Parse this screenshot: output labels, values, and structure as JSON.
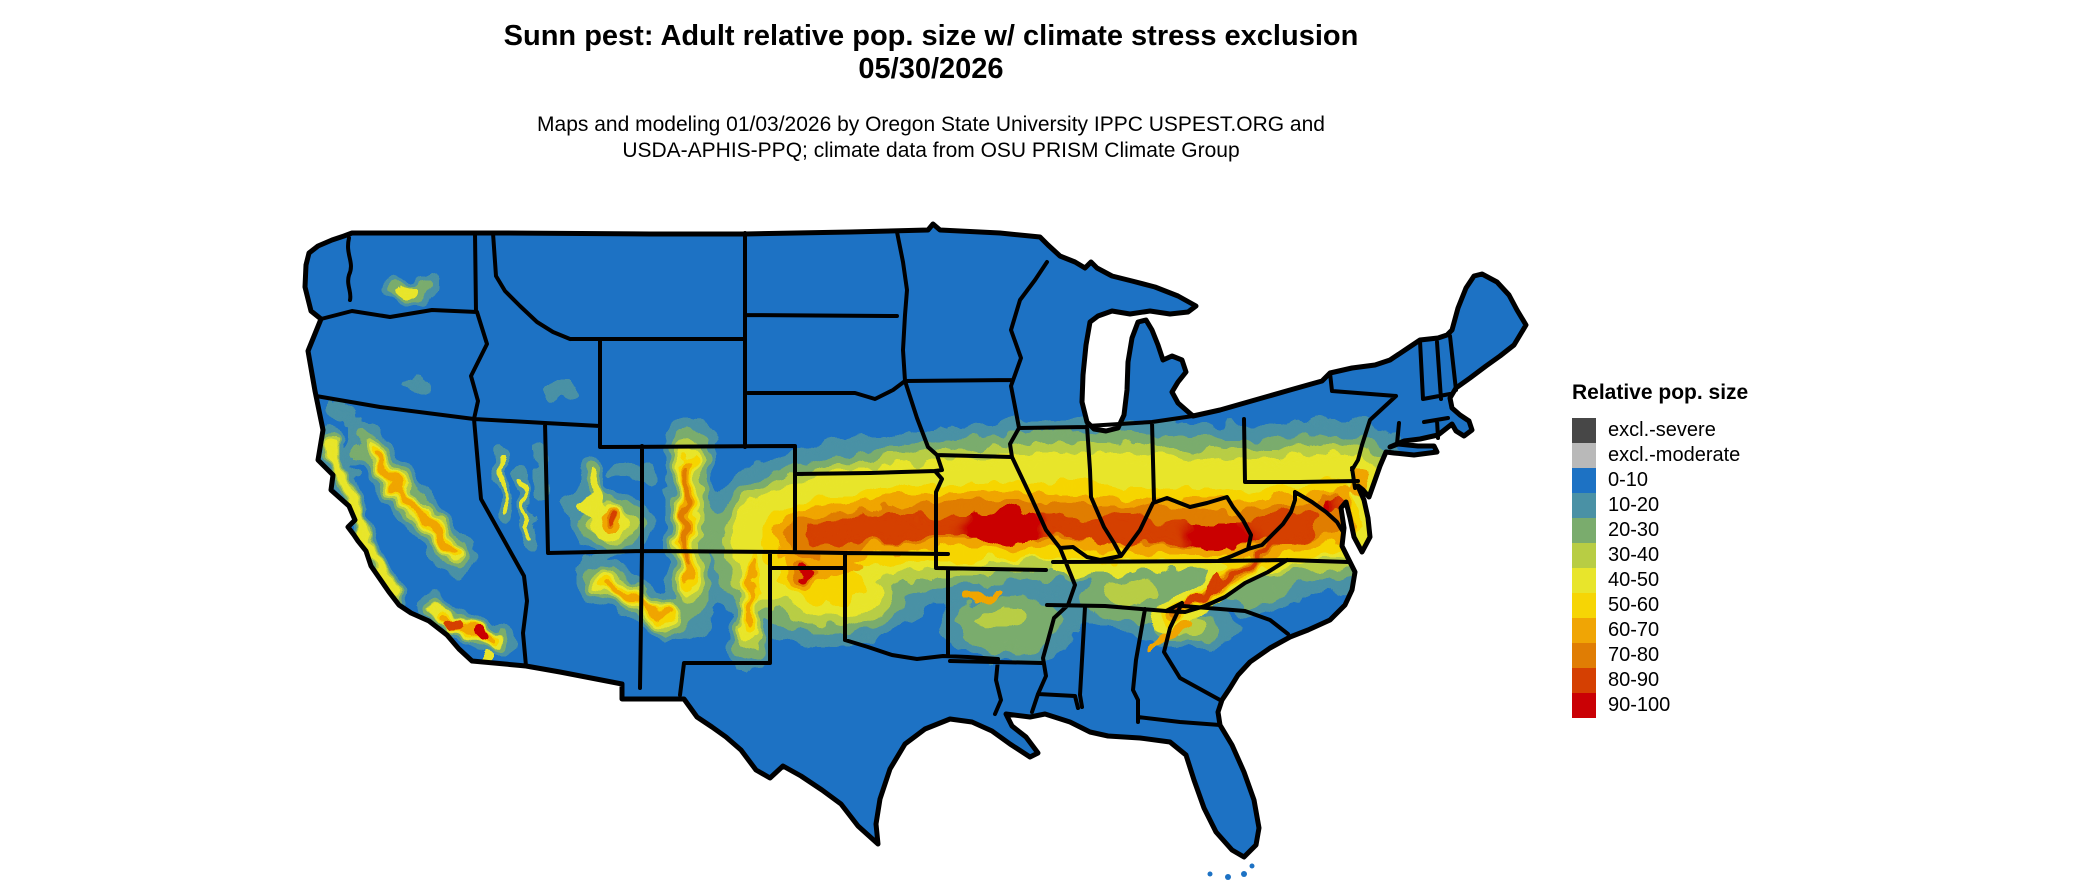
{
  "figure": {
    "title_line1": "Sunn pest: Adult relative pop. size w/ climate stress exclusion",
    "title_line2": "05/30/2026",
    "subtitle_line1": "Maps and modeling 01/03/2026 by Oregon State University IPPC USPEST.ORG and",
    "subtitle_line2": "USDA-APHIS-PPQ; climate data from OSU PRISM Climate Group"
  },
  "legend": {
    "title": "Relative pop. size",
    "items": [
      {
        "key": "excl_severe",
        "label": "excl.-severe",
        "color": "#474747"
      },
      {
        "key": "excl_moderate",
        "label": "excl.-moderate",
        "color": "#b9b9b9"
      },
      {
        "key": "p0_10",
        "label": "0-10",
        "color": "#1d72c4"
      },
      {
        "key": "p10_20",
        "label": "10-20",
        "color": "#4a91a5"
      },
      {
        "key": "p20_30",
        "label": "20-30",
        "color": "#7aac6d"
      },
      {
        "key": "p30_40",
        "label": "30-40",
        "color": "#b8cd44"
      },
      {
        "key": "p40_50",
        "label": "40-50",
        "color": "#e8e52b"
      },
      {
        "key": "p50_60",
        "label": "50-60",
        "color": "#f6d505"
      },
      {
        "key": "p60_70",
        "label": "60-70",
        "color": "#f0a505"
      },
      {
        "key": "p70_80",
        "label": "70-80",
        "color": "#e07d04"
      },
      {
        "key": "p80_90",
        "label": "80-90",
        "color": "#d54002"
      },
      {
        "key": "p90_100",
        "label": "90-100",
        "color": "#ca0105"
      }
    ]
  },
  "map": {
    "region": "Continental United States with state boundaries",
    "background_color": "#ffffff",
    "border_color": "#000000",
    "base_class": "0-10",
    "palette": {
      "excl_severe": "#474747",
      "excl_moderate": "#b9b9b9",
      "p0_10": "#1d72c4",
      "p10_20": "#4a91a5",
      "p20_30": "#7aac6d",
      "p30_40": "#b8cd44",
      "p40_50": "#e8e52b",
      "p50_60": "#f6d505",
      "p60_70": "#f0a505",
      "p70_80": "#e07d04",
      "p80_90": "#d54002",
      "p90_100": "#ca0105"
    },
    "summary": {
      "high_80_100": "East-west corridor of highest relative population: central/eastern Kansas, Missouri, southern Illinois, southern Indiana, Kentucky, West Virginia and western Virginia; also NE New Mexico/Texas panhandle corner, Colorado Front Range, Sierra Nevada and coastal California ranges, Mogollon Rim (AZ), southern Rockies (NM), Appalachian spine (GA to PA), and the Washington DC / Delmarva area",
      "moderate_40_70": "Yellow-to-orange ring surrounding the central corridor from eastern Colorado to the mid-Atlantic; Texas/Oklahoma panhandle area; Appalachian foothills; mountain flanks in the West",
      "low_20_40_fringe": "Green/teal fringe along the corridor edges, southern Iowa, Ozarks, Tennessee valley, northern Georgia/Alabama, western North Carolina, southern Pennsylvania ridges and scattered western plateaus",
      "low_0_10": "Most of the West, northern Plains, Great Lakes states, Northeast, Gulf Coast, Texas and Florida are in the 0-10 class",
      "exclusion_classes_visible_on_map": "excl.-severe and excl.-moderate appear in the legend; no large excluded areas are visible on the map"
    }
  }
}
